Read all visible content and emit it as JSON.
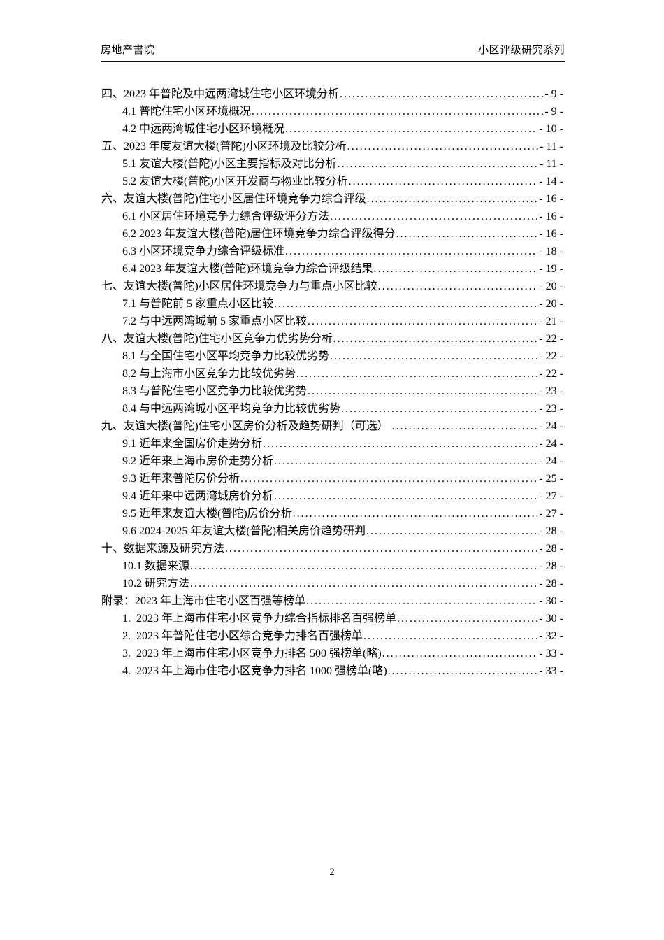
{
  "header": {
    "left": "房地产書院",
    "right": "小区评级研究系列"
  },
  "toc": {
    "entries": [
      {
        "level": 1,
        "label": "四、2023 年普陀及中远两湾城住宅小区环境分析",
        "page": "- 9 -"
      },
      {
        "level": 2,
        "label": "4.1 普陀住宅小区环境概况",
        "page": "- 9 -"
      },
      {
        "level": 2,
        "label": "4.2 中远两湾城住宅小区环境概况",
        "page": "- 10 -"
      },
      {
        "level": 1,
        "label": "五、2023 年度友谊大楼(普陀)小区环境及比较分析",
        "page": "- 11 -"
      },
      {
        "level": 2,
        "label": "5.1 友谊大楼(普陀)小区主要指标及对比分析",
        "page": "- 11 -"
      },
      {
        "level": 2,
        "label": "5.2 友谊大楼(普陀)小区开发商与物业比较分析",
        "page": "- 14 -"
      },
      {
        "level": 1,
        "label": "六、友谊大楼(普陀)住宅小区居住环境竞争力综合评级",
        "page": "- 16 -"
      },
      {
        "level": 2,
        "label": "6.1 小区居住环境竞争力综合评级评分方法",
        "page": "- 16 -"
      },
      {
        "level": 2,
        "label": "6.2 2023 年友谊大楼(普陀)居住环境竞争力综合评级得分",
        "page": "- 16 -"
      },
      {
        "level": 2,
        "label": "6.3 小区环境竞争力综合评级标准",
        "page": "- 18 -"
      },
      {
        "level": 2,
        "label": "6.4 2023 年友谊大楼(普陀)环境竞争力综合评级结果",
        "page": "- 19 -"
      },
      {
        "level": 1,
        "label": "七、友谊大楼(普陀)小区居住环境竞争力与重点小区比较",
        "page": "- 20 -"
      },
      {
        "level": 2,
        "label": "7.1 与普陀前 5 家重点小区比较",
        "page": "- 20 -"
      },
      {
        "level": 2,
        "label": "7.2 与中远两湾城前 5 家重点小区比较",
        "page": "- 21 -"
      },
      {
        "level": 1,
        "label": "八、友谊大楼(普陀)住宅小区竞争力优劣势分析",
        "page": "- 22 -"
      },
      {
        "level": 2,
        "label": "8.1 与全国住宅小区平均竞争力比较优劣势",
        "page": "- 22 -"
      },
      {
        "level": 2,
        "label": "8.2 与上海市小区竞争力比较优劣势",
        "page": "- 22 -"
      },
      {
        "level": 2,
        "label": "8.3 与普陀住宅小区竞争力比较优劣势",
        "page": "- 23 -"
      },
      {
        "level": 2,
        "label": "8.4 与中远两湾城小区平均竞争力比较优劣势",
        "page": "- 23 -"
      },
      {
        "level": 1,
        "label": "九、友谊大楼(普陀)住宅小区房价分析及趋势研判（可选） ",
        "page": "- 24 -"
      },
      {
        "level": 2,
        "label": "9.1 近年来全国房价走势分析",
        "page": "- 24 -"
      },
      {
        "level": 2,
        "label": "9.2 近年来上海市房价走势分析",
        "page": "- 24 -"
      },
      {
        "level": 2,
        "label": "9.3 近年来普陀房价分析",
        "page": "- 25 -"
      },
      {
        "level": 2,
        "label": "9.4 近年来中远两湾城房价分析",
        "page": "- 27 -"
      },
      {
        "level": 2,
        "label": "9.5 近年来友谊大楼(普陀)房价分析",
        "page": "- 27 -"
      },
      {
        "level": 2,
        "label": "9.6 2024-2025 年友谊大楼(普陀)相关房价趋势研判",
        "page": "- 28 -"
      },
      {
        "level": 1,
        "label": "十、数据来源及研究方法",
        "page": "- 28 -"
      },
      {
        "level": 2,
        "label": "10.1 数据来源",
        "page": "- 28 -"
      },
      {
        "level": 2,
        "label": "10.2 研究方法",
        "page": "- 28 -"
      },
      {
        "level": 1,
        "label": "附录：2023 年上海市住宅小区百强等榜单",
        "page": "- 30 -"
      },
      {
        "level": 2,
        "label": "1.  2023 年上海市住宅小区竞争力综合指标排名百强榜单",
        "page": "- 30 -"
      },
      {
        "level": 2,
        "label": "2.  2023 年普陀住宅小区综合竞争力排名百强榜单",
        "page": "- 32 -"
      },
      {
        "level": 2,
        "label": "3.  2023 年上海市住宅小区竞争力排名 500 强榜单(略)",
        "page": "- 33 -"
      },
      {
        "level": 2,
        "label": "4.  2023 年上海市住宅小区竞争力排名 1000 强榜单(略)",
        "page": "- 33 -"
      }
    ]
  },
  "footer": {
    "page_number": "2"
  }
}
